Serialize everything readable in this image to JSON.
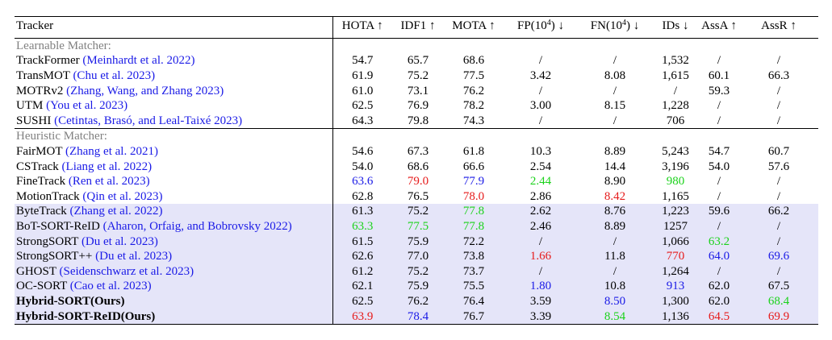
{
  "columns": [
    {
      "key": "tracker",
      "label": "Tracker"
    },
    {
      "key": "hota",
      "label": "HOTA ↑"
    },
    {
      "key": "idf1",
      "label": "IDF1 ↑"
    },
    {
      "key": "mota",
      "label": "MOTA ↑"
    },
    {
      "key": "fp",
      "label": "FP(10",
      "sup": "4",
      "after": ") ↓"
    },
    {
      "key": "fn",
      "label": "FN(10",
      "sup": "4",
      "after": ") ↓"
    },
    {
      "key": "ids",
      "label": "IDs ↓"
    },
    {
      "key": "assa",
      "label": "AssA ↑"
    },
    {
      "key": "assr",
      "label": "AssR ↑"
    }
  ],
  "value_colors": {
    "red": "#e61a1a",
    "blue": "#1a1ae6",
    "green": "#1ad21a"
  },
  "highlight_color": "#e5e5f9",
  "sections": [
    {
      "title": "Learnable Matcher:",
      "rows": [
        {
          "name": "TrackFormer",
          "cite": "(Meinhardt et al. 2022)",
          "values": [
            "54.7",
            "65.7",
            "68.6",
            "/",
            "/",
            "1,532",
            "/",
            "/"
          ]
        },
        {
          "name": "TransMOT",
          "cite": "(Chu et al. 2023)",
          "values": [
            "61.9",
            "75.2",
            "77.5",
            "3.42",
            "8.08",
            "1,615",
            "60.1",
            "66.3"
          ]
        },
        {
          "name": "MOTRv2",
          "cite": "(Zhang, Wang, and Zhang 2023)",
          "values": [
            "61.0",
            "73.1",
            "76.2",
            "/",
            "/",
            "/",
            "59.3",
            "/"
          ]
        },
        {
          "name": "UTM",
          "cite": "(You et al. 2023)",
          "values": [
            "62.5",
            "76.9",
            "78.2",
            "3.00",
            "8.15",
            "1,228",
            "/",
            "/"
          ]
        },
        {
          "name": "SUSHI",
          "cite": "(Cetintas, Brasó, and Leal-Taixé 2023)",
          "values": [
            "64.3",
            "79.8",
            "74.3",
            "/",
            "/",
            "706",
            "/",
            "/"
          ]
        }
      ]
    },
    {
      "title": "Heuristic Matcher:",
      "rows": [
        {
          "name": "FairMOT",
          "cite": "(Zhang et al. 2021)",
          "values": [
            "54.6",
            "67.3",
            "61.8",
            "10.3",
            "8.89",
            "5,243",
            "54.7",
            "60.7"
          ]
        },
        {
          "name": "CSTrack",
          "cite": "(Liang et al. 2022)",
          "values": [
            "54.0",
            "68.6",
            "66.6",
            "2.54",
            "14.4",
            "3,196",
            "54.0",
            "57.6"
          ]
        },
        {
          "name": "FineTrack",
          "cite": "(Ren et al. 2023)",
          "values": [
            "63.6",
            "79.0",
            "77.9",
            "2.44",
            "8.90",
            "980",
            "/",
            "/"
          ],
          "colors": [
            "blue",
            "red",
            "blue",
            "green",
            "",
            "green",
            "",
            ""
          ]
        },
        {
          "name": "MotionTrack",
          "cite": "(Qin et al. 2023)",
          "values": [
            "62.8",
            "76.5",
            "78.0",
            "2.86",
            "8.42",
            "1,165",
            "/",
            "/"
          ],
          "colors": [
            "",
            "",
            "red",
            "",
            "red",
            "",
            "",
            ""
          ]
        },
        {
          "name": "ByteTrack",
          "cite": "(Zhang et al. 2022)",
          "highlight": true,
          "values": [
            "61.3",
            "75.2",
            "77.8",
            "2.62",
            "8.76",
            "1,223",
            "59.6",
            "66.2"
          ],
          "colors": [
            "",
            "",
            "green",
            "",
            "",
            "",
            "",
            ""
          ]
        },
        {
          "name": "BoT-SORT-ReID",
          "cite": "(Aharon, Orfaig, and Bobrovsky 2022)",
          "highlight": true,
          "values": [
            "63.3",
            "77.5",
            "77.8",
            "2.46",
            "8.89",
            "1257",
            "/",
            "/"
          ],
          "colors": [
            "green",
            "green",
            "green",
            "",
            "",
            "",
            "",
            ""
          ]
        },
        {
          "name": "StrongSORT",
          "cite": "(Du et al. 2023)",
          "highlight": true,
          "values": [
            "61.5",
            "75.9",
            "72.2",
            "/",
            "/",
            "1,066",
            "63.2",
            "/"
          ],
          "colors": [
            "",
            "",
            "",
            "",
            "",
            "",
            "green",
            ""
          ]
        },
        {
          "name": "StrongSORT++",
          "cite": "(Du et al. 2023)",
          "highlight": true,
          "values": [
            "62.6",
            "77.0",
            "73.8",
            "1.66",
            "11.8",
            "770",
            "64.0",
            "69.6"
          ],
          "colors": [
            "",
            "",
            "",
            "red",
            "",
            "red",
            "blue",
            "blue"
          ]
        },
        {
          "name": "GHOST",
          "cite": "(Seidenschwarz et al. 2023)",
          "highlight": true,
          "values": [
            "61.2",
            "75.2",
            "73.7",
            "/",
            "/",
            "1,264",
            "/",
            "/"
          ]
        },
        {
          "name": "OC-SORT",
          "cite": "(Cao et al. 2023)",
          "highlight": true,
          "values": [
            "62.1",
            "75.9",
            "75.5",
            "1.80",
            "10.8",
            "913",
            "62.0",
            "67.5"
          ],
          "colors": [
            "",
            "",
            "",
            "blue",
            "",
            "blue",
            "",
            ""
          ]
        },
        {
          "name": "Hybrid-SORT(Ours)",
          "cite": "",
          "bold": true,
          "highlight": true,
          "values": [
            "62.5",
            "76.2",
            "76.4",
            "3.59",
            "8.50",
            "1,300",
            "62.0",
            "68.4"
          ],
          "colors": [
            "",
            "",
            "",
            "",
            "blue",
            "",
            "",
            "green"
          ]
        },
        {
          "name": "Hybrid-SORT-ReID(Ours)",
          "cite": "",
          "bold": true,
          "highlight": true,
          "values": [
            "63.9",
            "78.4",
            "76.7",
            "3.39",
            "8.54",
            "1,136",
            "64.5",
            "69.9"
          ],
          "colors": [
            "red",
            "blue",
            "",
            "",
            "green",
            "",
            "red",
            "red"
          ]
        }
      ]
    }
  ]
}
